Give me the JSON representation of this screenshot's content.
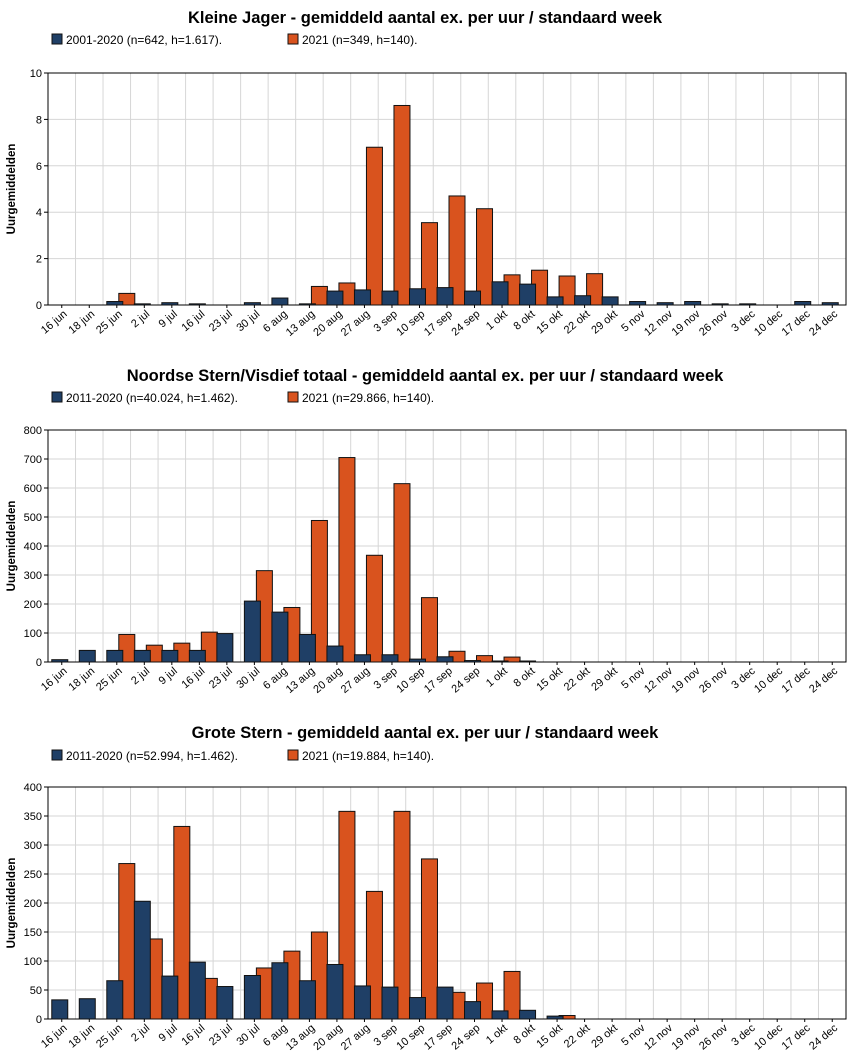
{
  "colors": {
    "hist": "#1f3f66",
    "current": "#d9531e"
  },
  "weeks": [
    "16 jun",
    "18 jun",
    "25 jun",
    "2 jul",
    "9 jul",
    "16 jul",
    "23 jul",
    "30 jul",
    "6 aug",
    "13 aug",
    "20 aug",
    "27 aug",
    "3 sep",
    "10 sep",
    "17 sep",
    "24 sep",
    "1 okt",
    "8 okt",
    "15 okt",
    "22 okt",
    "29 okt",
    "5 nov",
    "12 nov",
    "19 nov",
    "26 nov",
    "3 dec",
    "10 dec",
    "17 dec",
    "24 dec"
  ],
  "chart_data": [
    {
      "type": "bar",
      "title": "Kleine Jager - gemiddeld aantal ex. per uur / standaard week",
      "ylabel": "Uurgemiddelden",
      "ylim": [
        0,
        10
      ],
      "yticks": [
        0,
        2,
        4,
        6,
        8,
        10
      ],
      "series": [
        {
          "name": "2001-2020 (n=642, h=1.617).",
          "values": [
            0,
            0,
            0.15,
            0.05,
            0.1,
            0.05,
            0,
            0.1,
            0.3,
            0.05,
            0.6,
            0.65,
            0.6,
            0.7,
            0.75,
            0.6,
            1.0,
            0.9,
            0.35,
            0.4,
            0.35,
            0.15,
            0.1,
            0.15,
            0.05,
            0.05,
            0,
            0.15,
            0.1
          ]
        },
        {
          "name": "2021 (n=349, h=140).",
          "values": [
            0,
            0,
            0.5,
            0,
            0,
            0,
            0,
            0,
            0,
            0.8,
            0.95,
            6.8,
            8.6,
            3.55,
            4.7,
            4.15,
            1.3,
            1.5,
            1.25,
            1.35,
            0,
            0,
            0,
            0,
            0,
            0,
            0,
            0,
            0
          ]
        }
      ]
    },
    {
      "type": "bar",
      "title": "Noordse Stern/Visdief totaal - gemiddeld aantal ex. per uur / standaard week",
      "ylabel": "Uurgemiddelden",
      "ylim": [
        0,
        800
      ],
      "yticks": [
        0,
        100,
        200,
        300,
        400,
        500,
        600,
        700,
        800
      ],
      "series": [
        {
          "name": "2011-2020 (n=40.024, h=1.462).",
          "values": [
            8,
            40,
            40,
            40,
            40,
            40,
            98,
            210,
            172,
            95,
            55,
            25,
            25,
            10,
            18,
            5,
            3,
            2,
            0,
            0,
            0,
            0,
            0,
            0,
            0,
            0,
            0,
            0,
            0
          ]
        },
        {
          "name": "2021 (n=29.866, h=140).",
          "values": [
            0,
            0,
            95,
            58,
            65,
            103,
            0,
            315,
            188,
            488,
            705,
            368,
            615,
            222,
            37,
            22,
            17,
            0,
            0,
            0,
            0,
            0,
            0,
            0,
            0,
            0,
            0,
            0,
            0
          ]
        }
      ]
    },
    {
      "type": "bar",
      "title": "Grote Stern - gemiddeld aantal ex. per uur / standaard week",
      "ylabel": "Uurgemiddelden",
      "ylim": [
        0,
        400
      ],
      "yticks": [
        0,
        50,
        100,
        150,
        200,
        250,
        300,
        350,
        400
      ],
      "series": [
        {
          "name": "2011-2020 (n=52.994, h=1.462).",
          "values": [
            33,
            35,
            66,
            203,
            74,
            98,
            56,
            75,
            97,
            66,
            94,
            57,
            55,
            37,
            55,
            30,
            14,
            15,
            5,
            0,
            0,
            0,
            0,
            0,
            0,
            0,
            0,
            0,
            0
          ]
        },
        {
          "name": "2021 (n=19.884, h=140).",
          "values": [
            0,
            0,
            268,
            138,
            332,
            70,
            0,
            88,
            117,
            150,
            358,
            220,
            358,
            276,
            46,
            62,
            82,
            0,
            6,
            0,
            0,
            0,
            0,
            0,
            0,
            0,
            0,
            0,
            0
          ]
        }
      ]
    }
  ]
}
